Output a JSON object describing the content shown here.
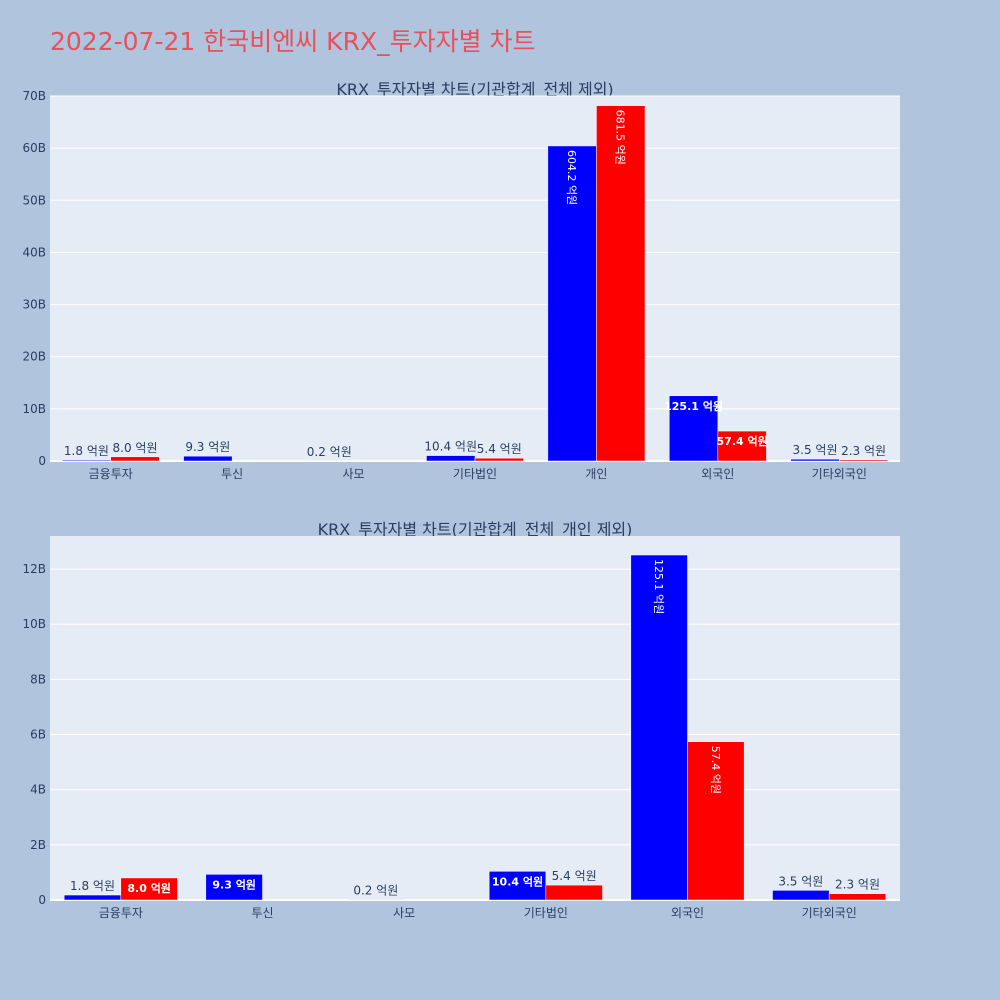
{
  "page_title": "2022-07-21 한국비엔씨 KRX_투자자별 차트",
  "colors": {
    "buy": "#0000ff",
    "sell": "#ff0000",
    "plot_bg": "#e5ecf6",
    "page_bg": "#b0c4de",
    "title": "#e8505b"
  },
  "chart_data": [
    {
      "type": "bar",
      "title": "KRX_투자자별 차트(기관합계_전체 제외)",
      "categories": [
        "금융투자",
        "투신",
        "사모",
        "기타법인",
        "개인",
        "외국인",
        "기타외국인"
      ],
      "series": [
        {
          "values": [
            0.18,
            0.93,
            0.02,
            1.04,
            60.42,
            12.51,
            0.35
          ],
          "labels": [
            "1.8 억원",
            "9.3 억원",
            "0.2 억원",
            "10.4 억원",
            "604.2 억원",
            "125.1 억원",
            "3.5 억원"
          ]
        },
        {
          "values": [
            0.8,
            0,
            0,
            0.54,
            68.15,
            5.74,
            0.23
          ],
          "labels": [
            "8.0 억원",
            "",
            "",
            "5.4 억원",
            "681.5 억원",
            "57.4 억원",
            "2.3 억원"
          ]
        }
      ],
      "ylim": [
        0,
        70
      ],
      "y_ticks": [
        0,
        10,
        20,
        30,
        40,
        50,
        60,
        70
      ],
      "y_tick_labels": [
        "0",
        "10B",
        "20B",
        "30B",
        "40B",
        "50B",
        "60B",
        "70B"
      ],
      "grid": true
    },
    {
      "type": "bar",
      "title": "KRX_투자자별 차트(기관합계_전체_개인 제외)",
      "categories": [
        "금융투자",
        "투신",
        "사모",
        "기타법인",
        "외국인",
        "기타외국인"
      ],
      "series": [
        {
          "values": [
            0.18,
            0.93,
            0.02,
            1.04,
            12.51,
            0.35
          ],
          "labels": [
            "1.8 억원",
            "9.3 억원",
            "0.2 억원",
            "10.4 억원",
            "125.1 억원",
            "3.5 억원"
          ]
        },
        {
          "values": [
            0.8,
            0,
            0,
            0.54,
            5.74,
            0.23
          ],
          "labels": [
            "8.0 억원",
            "",
            "",
            "5.4 억원",
            "57.4 억원",
            "2.3 억원"
          ]
        }
      ],
      "ylim": [
        0,
        13.2
      ],
      "y_ticks": [
        0,
        2,
        4,
        6,
        8,
        10,
        12
      ],
      "y_tick_labels": [
        "0",
        "2B",
        "4B",
        "6B",
        "8B",
        "10B",
        "12B"
      ],
      "grid": true
    }
  ]
}
